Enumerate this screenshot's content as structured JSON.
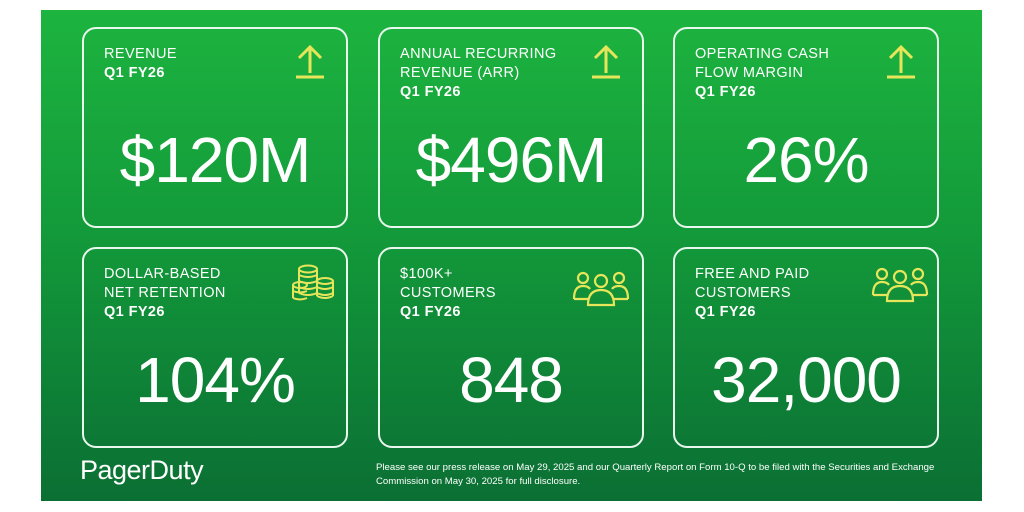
{
  "accent_color": "#e7e65a",
  "cards": [
    {
      "label_lines": [
        "REVENUE"
      ],
      "period": "Q1 FY26",
      "value": "$120M",
      "icon": "up-arrow-icon"
    },
    {
      "label_lines": [
        "ANNUAL RECURRING",
        "REVENUE (ARR)"
      ],
      "period": "Q1 FY26",
      "value": "$496M",
      "icon": "up-arrow-icon"
    },
    {
      "label_lines": [
        "OPERATING CASH",
        "FLOW MARGIN"
      ],
      "period": "Q1 FY26",
      "value": "26%",
      "icon": "up-arrow-icon"
    },
    {
      "label_lines": [
        "DOLLAR-BASED",
        "NET RETENTION"
      ],
      "period": "Q1 FY26",
      "value": "104%",
      "icon": "coin-stack-icon"
    },
    {
      "label_lines": [
        "$100K+",
        "CUSTOMERS"
      ],
      "period": "Q1 FY26",
      "value": "848",
      "icon": "group-people-icon"
    },
    {
      "label_lines": [
        "FREE AND PAID",
        "CUSTOMERS"
      ],
      "period": "Q1 FY26",
      "value": "32,000",
      "icon": "group-people-icon"
    }
  ],
  "brand": {
    "logo_text": "PagerDuty"
  },
  "footer": {
    "disclaimer": "Please see our press release on May 29, 2025 and our Quarterly Report on Form 10-Q to be filed with the Securities and Exchange Commission on May 30, 2025 for full disclosure."
  }
}
